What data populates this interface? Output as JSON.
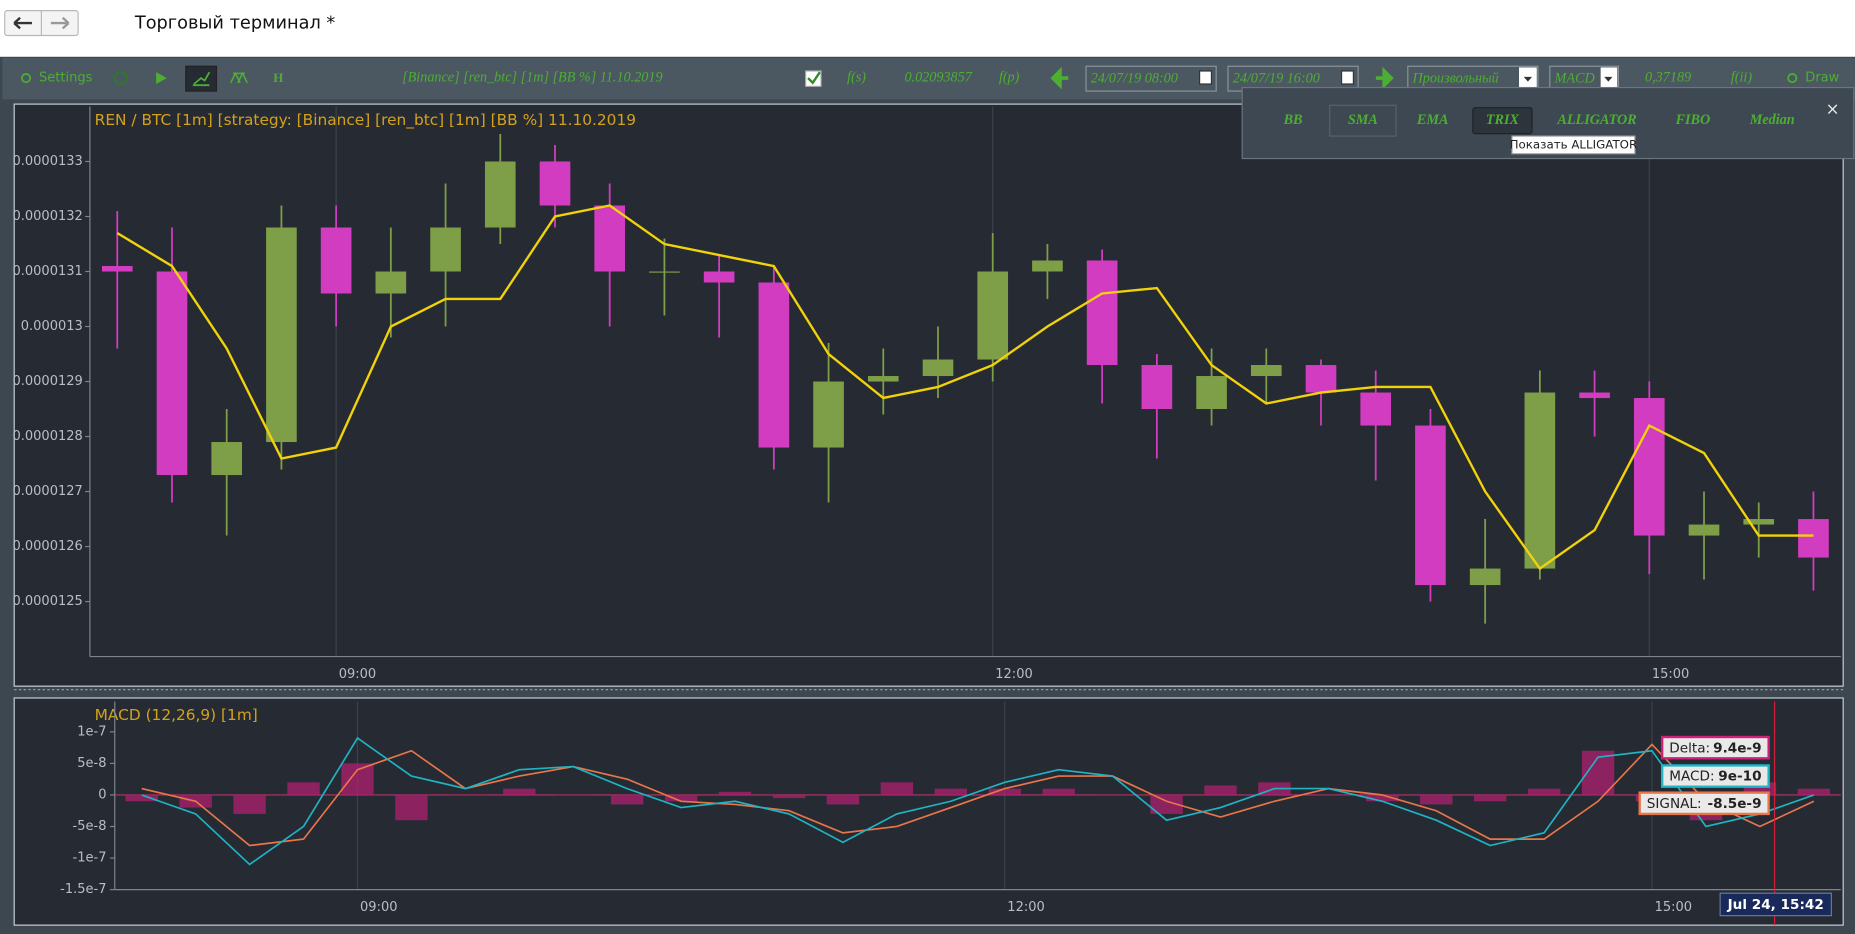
{
  "header": {
    "title": "Торговый терминал *"
  },
  "toolbar": {
    "settings": "Settings",
    "h": "H",
    "strategy": "[Binance] [ren_btc] [1m] [BB %] 11.10.2019",
    "fs": "f(s)",
    "fs_value": "0.02093857",
    "fp": "f(p)",
    "date_from": "24/07/19 08:00",
    "date_to": "24/07/19 16:00",
    "mode": "Произвольный",
    "indicator": "MACD",
    "indicator_value": "0,37189",
    "fii": "f(ii)",
    "draw": "Draw"
  },
  "popup": {
    "tabs": [
      "BB",
      "SMA",
      "EMA",
      "TRIX",
      "ALLIGATOR",
      "FIBO",
      "Median"
    ],
    "close": "×",
    "tooltip": "Показать ALLIGATOR"
  },
  "chart_data": [
    {
      "type": "candlestick",
      "title": "REN / BTC [1m] [strategy: [Binance] [ren_btc] [1m] [BB %] 11.10.2019",
      "categories": [
        null,
        null,
        null,
        null,
        "09:00",
        null,
        null,
        null,
        null,
        null,
        null,
        null,
        null,
        null,
        null,
        null,
        "12:00",
        null,
        null,
        null,
        null,
        null,
        null,
        null,
        null,
        null,
        null,
        null,
        "15:00",
        null,
        null,
        null
      ],
      "open": [
        1.311e-05,
        1.31e-05,
        1.273e-05,
        1.279e-05,
        1.318e-05,
        1.306e-05,
        1.31e-05,
        1.318e-05,
        1.33e-05,
        1.322e-05,
        1.31e-05,
        1.31e-05,
        1.308e-05,
        1.278e-05,
        1.29e-05,
        1.291e-05,
        1.294e-05,
        1.31e-05,
        1.312e-05,
        1.293e-05,
        1.285e-05,
        1.291e-05,
        1.293e-05,
        1.288e-05,
        1.282e-05,
        1.253e-05,
        1.256e-05,
        1.288e-05,
        1.287e-05,
        1.262e-05,
        1.264e-05,
        1.265e-05
      ],
      "high": [
        1.321e-05,
        1.318e-05,
        1.285e-05,
        1.322e-05,
        1.322e-05,
        1.318e-05,
        1.326e-05,
        1.335e-05,
        1.333e-05,
        1.326e-05,
        1.316e-05,
        1.313e-05,
        1.311e-05,
        1.297e-05,
        1.296e-05,
        1.3e-05,
        1.317e-05,
        1.315e-05,
        1.314e-05,
        1.295e-05,
        1.296e-05,
        1.296e-05,
        1.294e-05,
        1.292e-05,
        1.285e-05,
        1.265e-05,
        1.292e-05,
        1.292e-05,
        1.29e-05,
        1.27e-05,
        1.268e-05,
        1.27e-05
      ],
      "low": [
        1.296e-05,
        1.268e-05,
        1.262e-05,
        1.274e-05,
        1.3e-05,
        1.298e-05,
        1.3e-05,
        1.315e-05,
        1.318e-05,
        1.3e-05,
        1.302e-05,
        1.298e-05,
        1.274e-05,
        1.268e-05,
        1.284e-05,
        1.287e-05,
        1.29e-05,
        1.305e-05,
        1.286e-05,
        1.276e-05,
        1.282e-05,
        1.286e-05,
        1.282e-05,
        1.272e-05,
        1.25e-05,
        1.246e-05,
        1.254e-05,
        1.28e-05,
        1.255e-05,
        1.254e-05,
        1.258e-05,
        1.252e-05
      ],
      "close": [
        1.31e-05,
        1.273e-05,
        1.279e-05,
        1.318e-05,
        1.306e-05,
        1.31e-05,
        1.318e-05,
        1.33e-05,
        1.322e-05,
        1.31e-05,
        1.31e-05,
        1.308e-05,
        1.278e-05,
        1.29e-05,
        1.291e-05,
        1.294e-05,
        1.31e-05,
        1.312e-05,
        1.293e-05,
        1.285e-05,
        1.291e-05,
        1.293e-05,
        1.288e-05,
        1.282e-05,
        1.253e-05,
        1.256e-05,
        1.288e-05,
        1.287e-05,
        1.262e-05,
        1.264e-05,
        1.265e-05,
        1.258e-05
      ],
      "up_color": "#7e9e48",
      "down_color": "#d23cc0",
      "overlay": {
        "color": "#f2d20a",
        "values": [
          1.317e-05,
          1.311e-05,
          1.296e-05,
          1.276e-05,
          1.278e-05,
          1.3e-05,
          1.305e-05,
          1.305e-05,
          1.32e-05,
          1.322e-05,
          1.315e-05,
          1.313e-05,
          1.311e-05,
          1.295e-05,
          1.287e-05,
          1.289e-05,
          1.293e-05,
          1.3e-05,
          1.306e-05,
          1.307e-05,
          1.293e-05,
          1.286e-05,
          1.288e-05,
          1.289e-05,
          1.289e-05,
          1.27e-05,
          1.256e-05,
          1.263e-05,
          1.282e-05,
          1.277e-05,
          1.262e-05,
          1.262e-05
        ]
      },
      "ylim": [
        1.24e-05,
        1.34e-05
      ],
      "yticks": [
        1.25e-05,
        1.26e-05,
        1.27e-05,
        1.28e-05,
        1.29e-05,
        1.3e-05,
        1.31e-05,
        1.32e-05,
        1.33e-05
      ],
      "grid": "x"
    },
    {
      "type": "macd",
      "title": "MACD (12,26,9) [1m]",
      "categories": [
        null,
        null,
        null,
        null,
        "09:00",
        null,
        null,
        null,
        null,
        null,
        null,
        null,
        null,
        null,
        null,
        null,
        "12:00",
        null,
        null,
        null,
        null,
        null,
        null,
        null,
        null,
        null,
        null,
        null,
        "15:00",
        null,
        null,
        null
      ],
      "series": [
        {
          "color": "#a8206c",
          "kind": "bar",
          "values": [
            -1e-08,
            -2e-08,
            -3e-08,
            2e-08,
            5e-08,
            -4e-08,
            0,
            1e-08,
            0,
            -1.5e-08,
            -1e-08,
            5e-09,
            -5e-09,
            -1.5e-08,
            2e-08,
            1e-08,
            1e-08,
            1e-08,
            0,
            -3e-08,
            1.5e-08,
            2e-08,
            0,
            -1e-08,
            -1.5e-08,
            -1e-08,
            1e-08,
            7e-08,
            -1e-08,
            -4e-08,
            2e-08,
            1e-08
          ]
        },
        {
          "color": "#e8764a",
          "kind": "line",
          "values": [
            1e-08,
            -1e-08,
            -8e-08,
            -7e-08,
            4e-08,
            7e-08,
            1e-08,
            3e-08,
            4.5e-08,
            2.5e-08,
            -1e-08,
            -1.5e-08,
            -2.5e-08,
            -6e-08,
            -5e-08,
            -2e-08,
            1e-08,
            3e-08,
            3e-08,
            -1e-08,
            -3.5e-08,
            -1e-08,
            1e-08,
            0,
            -2.5e-08,
            -7e-08,
            -7e-08,
            -1e-08,
            8e-08,
            -1e-08,
            -5e-08,
            -1e-08
          ]
        },
        {
          "color": "#1fb4c4",
          "kind": "line",
          "values": [
            0,
            -3e-08,
            -1.1e-07,
            -5e-08,
            9e-08,
            3e-08,
            1e-08,
            4e-08,
            4.5e-08,
            1e-08,
            -2e-08,
            -1e-08,
            -3e-08,
            -7.5e-08,
            -3e-08,
            -1e-08,
            2e-08,
            4e-08,
            3e-08,
            -4e-08,
            -2e-08,
            1e-08,
            1e-08,
            -1e-08,
            -4e-08,
            -8e-08,
            -6e-08,
            6e-08,
            7e-08,
            -5e-08,
            -3e-08,
            0
          ]
        }
      ],
      "ylim": [
        -1.5e-07,
        1.48e-07
      ],
      "yticks": [
        -1.5e-07,
        -1e-07,
        -5e-08,
        0,
        5e-08,
        1e-07
      ],
      "tooltip": {
        "items": [
          {
            "label": "Delta:",
            "value": 9.4e-09,
            "color": "#d0207a"
          },
          {
            "label": "MACD:",
            "value": 9e-10,
            "color": "#1fb4c4"
          },
          {
            "label": "SIGNAL:",
            "value": -8.5e-09,
            "color": "#e8764a"
          }
        ],
        "time": "Jul 24, 15:42"
      }
    }
  ]
}
